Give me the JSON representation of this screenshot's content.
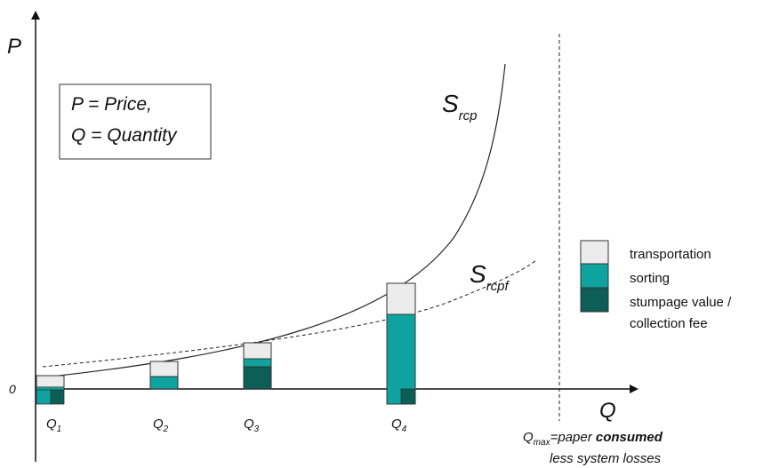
{
  "axes": {
    "y_label": "P",
    "x_label": "Q",
    "origin_label": "0"
  },
  "definition_box": {
    "line1": "P = Price,",
    "line2": "Q = Quantity"
  },
  "curves": [
    {
      "id": "rcp",
      "base": "S",
      "sub": "rcp",
      "style": "solid"
    },
    {
      "id": "rcpf",
      "base": "S",
      "sub": "rcpf",
      "style": "dashed"
    }
  ],
  "quantity_ticks": [
    {
      "base": "Q",
      "sub": "1"
    },
    {
      "base": "Q",
      "sub": "2"
    },
    {
      "base": "Q",
      "sub": "3"
    },
    {
      "base": "Q",
      "sub": "4"
    }
  ],
  "qmax_label": {
    "base": "Q",
    "sub": "max",
    "eq": "=paper ",
    "bold": "consumed",
    "line2": "less system losses"
  },
  "legend": [
    {
      "label": "transportation",
      "color": "#ececec"
    },
    {
      "label": "sorting",
      "color": "#0fa3a0"
    },
    {
      "label_line1": "stumpage value /",
      "label_line2": "collection fee",
      "color": "#0c5e56"
    }
  ],
  "colors": {
    "transportation": "#ececec",
    "sorting": "#0fa3a0",
    "stumpage": "#0c5e56",
    "axis": "#111111"
  }
}
